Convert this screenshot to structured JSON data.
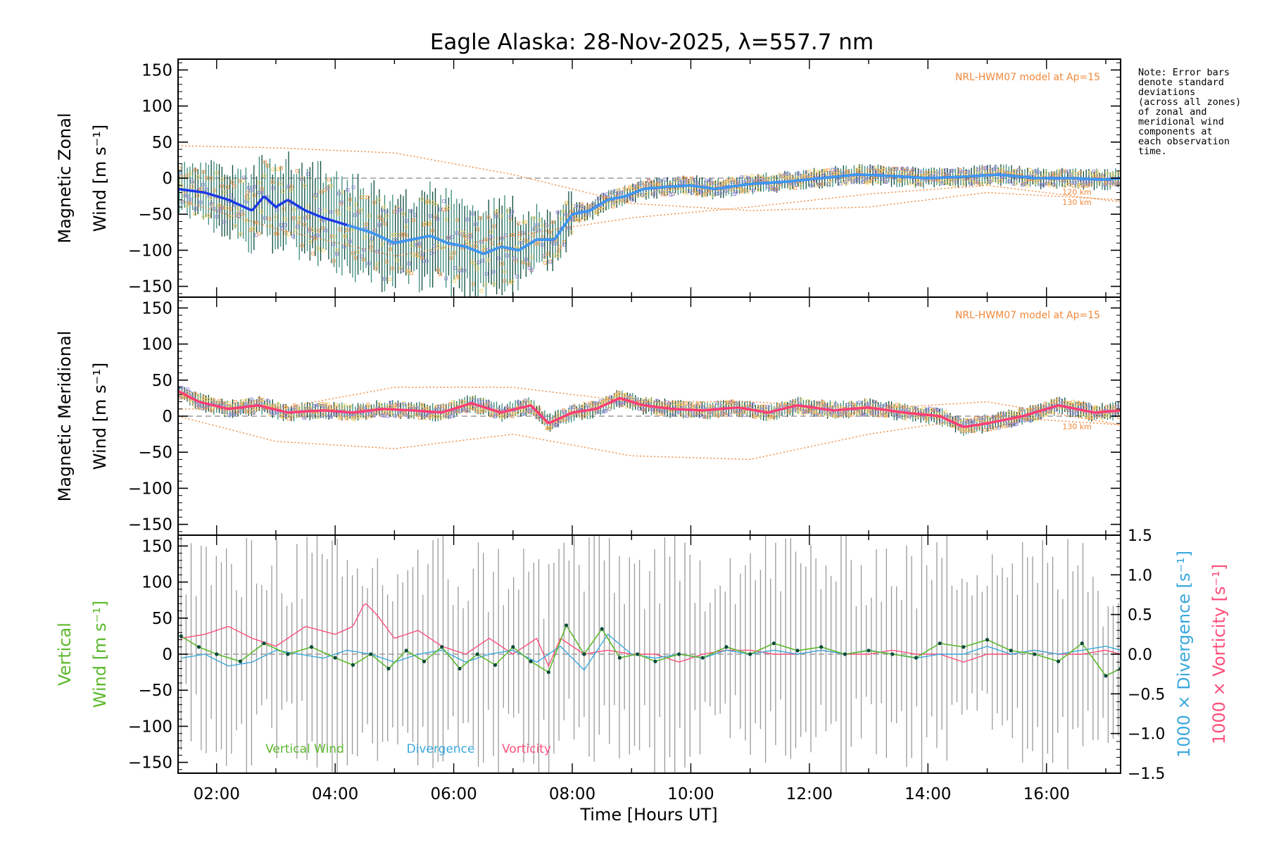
{
  "title": "Eagle Alaska: 28-Nov-2025, λ=557.7 nm",
  "note_lines": [
    "Note: Error bars",
    "denote standard",
    "deviations",
    "(across all zones)",
    "of zonal and",
    "meridional wind",
    "components at",
    "each observation",
    "time."
  ],
  "model_label": "NRL-HWM07 model at Ap=15",
  "alt_labels": [
    "120 km",
    "130 km"
  ],
  "colors": {
    "zonal": "#1c39e8",
    "zonal_light": "#3e9df3",
    "meridional": "#ff3e74",
    "vertical": "#5cb82c",
    "divergence": "#3aa8dc",
    "vorticity": "#ff4f7a",
    "model": "#f0883a",
    "errorbar_dark": "#0b4a3a",
    "errorbar_grey": "#9a9a9a",
    "zone_purple": "#9b90d8",
    "zone_orange": "#f2a05b",
    "zone_yellow": "#f2d67a"
  },
  "chart_data": [
    {
      "type": "line",
      "panel": "zonal",
      "ylabel_line1": "Magnetic Zonal",
      "ylabel_line2": "Wind [m s⁻¹]",
      "ylim": [
        -165,
        165
      ],
      "yticks": [
        150,
        100,
        50,
        0,
        -50,
        -100,
        -150
      ],
      "ytick_labels": [
        "150",
        "100",
        "50",
        "0",
        "−50",
        "−100",
        "−150"
      ],
      "xlim": [
        1.35,
        17.25
      ],
      "series": [
        {
          "name": "Zonal wind",
          "x": [
            1.35,
            1.8,
            2.2,
            2.6,
            2.8,
            3.0,
            3.2,
            3.5,
            3.8,
            4.2,
            4.6,
            5.0,
            5.3,
            5.6,
            5.9,
            6.2,
            6.5,
            6.8,
            7.1,
            7.4,
            7.7,
            8.0,
            8.3,
            8.6,
            8.9,
            9.2,
            9.6,
            10.0,
            10.4,
            11.0,
            11.6,
            12.2,
            12.8,
            13.4,
            14.0,
            14.6,
            15.2,
            15.8,
            16.4,
            17.0,
            17.25
          ],
          "y": [
            -15,
            -20,
            -30,
            -45,
            -25,
            -40,
            -30,
            -45,
            -55,
            -65,
            -75,
            -90,
            -85,
            -80,
            -90,
            -95,
            -105,
            -95,
            -100,
            -85,
            -85,
            -50,
            -45,
            -30,
            -25,
            -15,
            -12,
            -10,
            -15,
            -8,
            -5,
            0,
            5,
            3,
            0,
            2,
            5,
            0,
            0,
            -2,
            0
          ]
        },
        {
          "name": "HWM07 120 km",
          "x": [
            1.35,
            3,
            5,
            7,
            9,
            11,
            13,
            15,
            17.25
          ],
          "y": [
            45,
            42,
            35,
            5,
            -35,
            -45,
            -40,
            -20,
            -30
          ]
        },
        {
          "name": "HWM07 130 km",
          "x": [
            1.35,
            3,
            5,
            7,
            9,
            11,
            13,
            15,
            17.25
          ],
          "y": [
            -30,
            -70,
            -108,
            -80,
            -55,
            -40,
            -22,
            -10,
            -33
          ]
        }
      ]
    },
    {
      "type": "line",
      "panel": "meridional",
      "ylabel_line1": "Magnetic Meridional",
      "ylabel_line2": "Wind [m s⁻¹]",
      "ylim": [
        -165,
        165
      ],
      "yticks": [
        150,
        100,
        50,
        0,
        -50,
        -100,
        -150
      ],
      "ytick_labels": [
        "150",
        "100",
        "50",
        "0",
        "−50",
        "−100",
        "−150"
      ],
      "xlim": [
        1.35,
        17.25
      ],
      "series": [
        {
          "name": "Meridional wind",
          "x": [
            1.35,
            1.7,
            2.2,
            2.7,
            3.2,
            3.8,
            4.3,
            4.8,
            5.3,
            5.8,
            6.3,
            6.8,
            7.3,
            7.6,
            8.0,
            8.4,
            8.8,
            9.2,
            9.7,
            10.2,
            10.8,
            11.3,
            11.8,
            12.4,
            13.0,
            13.6,
            14.2,
            14.6,
            15.0,
            15.6,
            16.2,
            16.8,
            17.25
          ],
          "y": [
            35,
            20,
            10,
            15,
            5,
            8,
            5,
            10,
            8,
            5,
            18,
            5,
            15,
            -10,
            5,
            10,
            25,
            15,
            10,
            8,
            12,
            5,
            15,
            8,
            12,
            5,
            0,
            -15,
            -10,
            0,
            15,
            5,
            8
          ]
        },
        {
          "name": "HWM07 120 km",
          "x": [
            1.35,
            3,
            5,
            7,
            9,
            11,
            13,
            15,
            17.25
          ],
          "y": [
            10,
            10,
            40,
            40,
            20,
            20,
            10,
            20,
            -12
          ]
        },
        {
          "name": "HWM07 130 km",
          "x": [
            1.35,
            3,
            5,
            7,
            9,
            11,
            13,
            15,
            17.25
          ],
          "y": [
            0,
            -35,
            -45,
            -25,
            -55,
            -60,
            -25,
            0,
            -12
          ]
        }
      ]
    },
    {
      "type": "line",
      "panel": "vertical",
      "ylabel_line1": "Vertical",
      "ylabel_line2": "Wind [m s⁻¹]",
      "ylim": [
        -165,
        165
      ],
      "yticks": [
        150,
        100,
        50,
        0,
        -50,
        -100,
        -150
      ],
      "ytick_labels": [
        "150",
        "100",
        "50",
        "0",
        "−50",
        "−100",
        "−150"
      ],
      "y2label_div": "1000 × Divergence [s⁻¹]",
      "y2label_vor": "1000 × Vorticity [s⁻¹]",
      "y2lim": [
        -1.5,
        1.5
      ],
      "y2ticks": [
        1.5,
        1.0,
        0.5,
        0.0,
        -0.5,
        -1.0,
        -1.5
      ],
      "y2tick_labels": [
        "1.5",
        "1.0",
        "0.5",
        "0.0",
        "−0.5",
        "−1.0",
        "−1.5"
      ],
      "xlabel": "Time [Hours UT]",
      "xlim": [
        1.35,
        17.25
      ],
      "xticks": [
        2,
        4,
        6,
        8,
        10,
        12,
        14,
        16
      ],
      "xtick_labels": [
        "02:00",
        "04:00",
        "06:00",
        "08:00",
        "10:00",
        "12:00",
        "14:00",
        "16:00"
      ],
      "legend": [
        "Vertical Wind",
        "Divergence",
        "Vorticity"
      ],
      "series": [
        {
          "name": "Vertical Wind",
          "axis": "left",
          "x": [
            1.4,
            1.7,
            2.0,
            2.4,
            2.8,
            3.2,
            3.6,
            4.0,
            4.3,
            4.6,
            4.9,
            5.2,
            5.5,
            5.8,
            6.1,
            6.4,
            6.7,
            7.0,
            7.3,
            7.6,
            7.9,
            8.2,
            8.5,
            8.8,
            9.1,
            9.4,
            9.8,
            10.2,
            10.6,
            11.0,
            11.4,
            11.8,
            12.2,
            12.6,
            13.0,
            13.4,
            13.8,
            14.2,
            14.6,
            15.0,
            15.4,
            15.8,
            16.2,
            16.6,
            17.0,
            17.25
          ],
          "y": [
            25,
            10,
            0,
            -10,
            15,
            0,
            10,
            -5,
            -15,
            0,
            -20,
            5,
            -10,
            10,
            -20,
            0,
            -15,
            10,
            -10,
            -25,
            40,
            0,
            35,
            -5,
            0,
            -10,
            0,
            -5,
            10,
            0,
            15,
            5,
            10,
            0,
            5,
            0,
            -5,
            15,
            10,
            20,
            5,
            0,
            -10,
            15,
            -30,
            -20
          ]
        },
        {
          "name": "Divergence",
          "axis": "right",
          "x": [
            1.4,
            1.8,
            2.2,
            2.6,
            3.0,
            3.4,
            3.8,
            4.2,
            4.6,
            5.0,
            5.4,
            5.8,
            6.2,
            6.6,
            7.0,
            7.4,
            7.8,
            8.2,
            8.6,
            9.0,
            9.4,
            9.8,
            10.2,
            10.6,
            11.0,
            11.4,
            11.8,
            12.2,
            12.6,
            13.0,
            13.4,
            13.8,
            14.2,
            14.6,
            15.0,
            15.4,
            15.8,
            16.2,
            16.6,
            17.0,
            17.25
          ],
          "y": [
            -0.05,
            0.0,
            -0.15,
            -0.1,
            0.05,
            0.0,
            -0.05,
            0.05,
            0.0,
            -0.1,
            0.0,
            0.05,
            -0.1,
            0.0,
            0.05,
            -0.1,
            0.1,
            -0.2,
            0.25,
            0.0,
            -0.05,
            0.0,
            -0.05,
            0.05,
            0.0,
            0.05,
            0.0,
            0.05,
            0.0,
            0.05,
            0.0,
            -0.05,
            0.0,
            0.0,
            0.1,
            0.0,
            0.05,
            0.0,
            0.05,
            0.1,
            0.05
          ]
        },
        {
          "name": "Vorticity",
          "axis": "right",
          "x": [
            1.4,
            1.8,
            2.2,
            2.6,
            3.0,
            3.5,
            4.0,
            4.3,
            4.5,
            4.7,
            5.0,
            5.4,
            5.8,
            6.2,
            6.6,
            7.0,
            7.4,
            7.6,
            7.8,
            8.2,
            8.6,
            9.0,
            9.4,
            9.8,
            10.2,
            10.6,
            11.0,
            11.4,
            11.8,
            12.2,
            12.6,
            13.0,
            13.4,
            13.8,
            14.2,
            14.6,
            15.0,
            15.4,
            15.8,
            16.2,
            16.6,
            17.0,
            17.25
          ],
          "y": [
            0.2,
            0.25,
            0.35,
            0.2,
            0.1,
            0.35,
            0.25,
            0.35,
            0.65,
            0.5,
            0.2,
            0.3,
            0.1,
            0.0,
            0.2,
            0.0,
            0.2,
            -0.15,
            0.2,
            0.0,
            0.05,
            0.0,
            0.0,
            -0.1,
            0.0,
            0.05,
            0.05,
            0.0,
            0.0,
            0.05,
            0.0,
            0.0,
            0.05,
            0.0,
            0.0,
            -0.1,
            0.0,
            0.0,
            0.05,
            0.0,
            0.0,
            0.05,
            0.0
          ]
        }
      ]
    }
  ]
}
